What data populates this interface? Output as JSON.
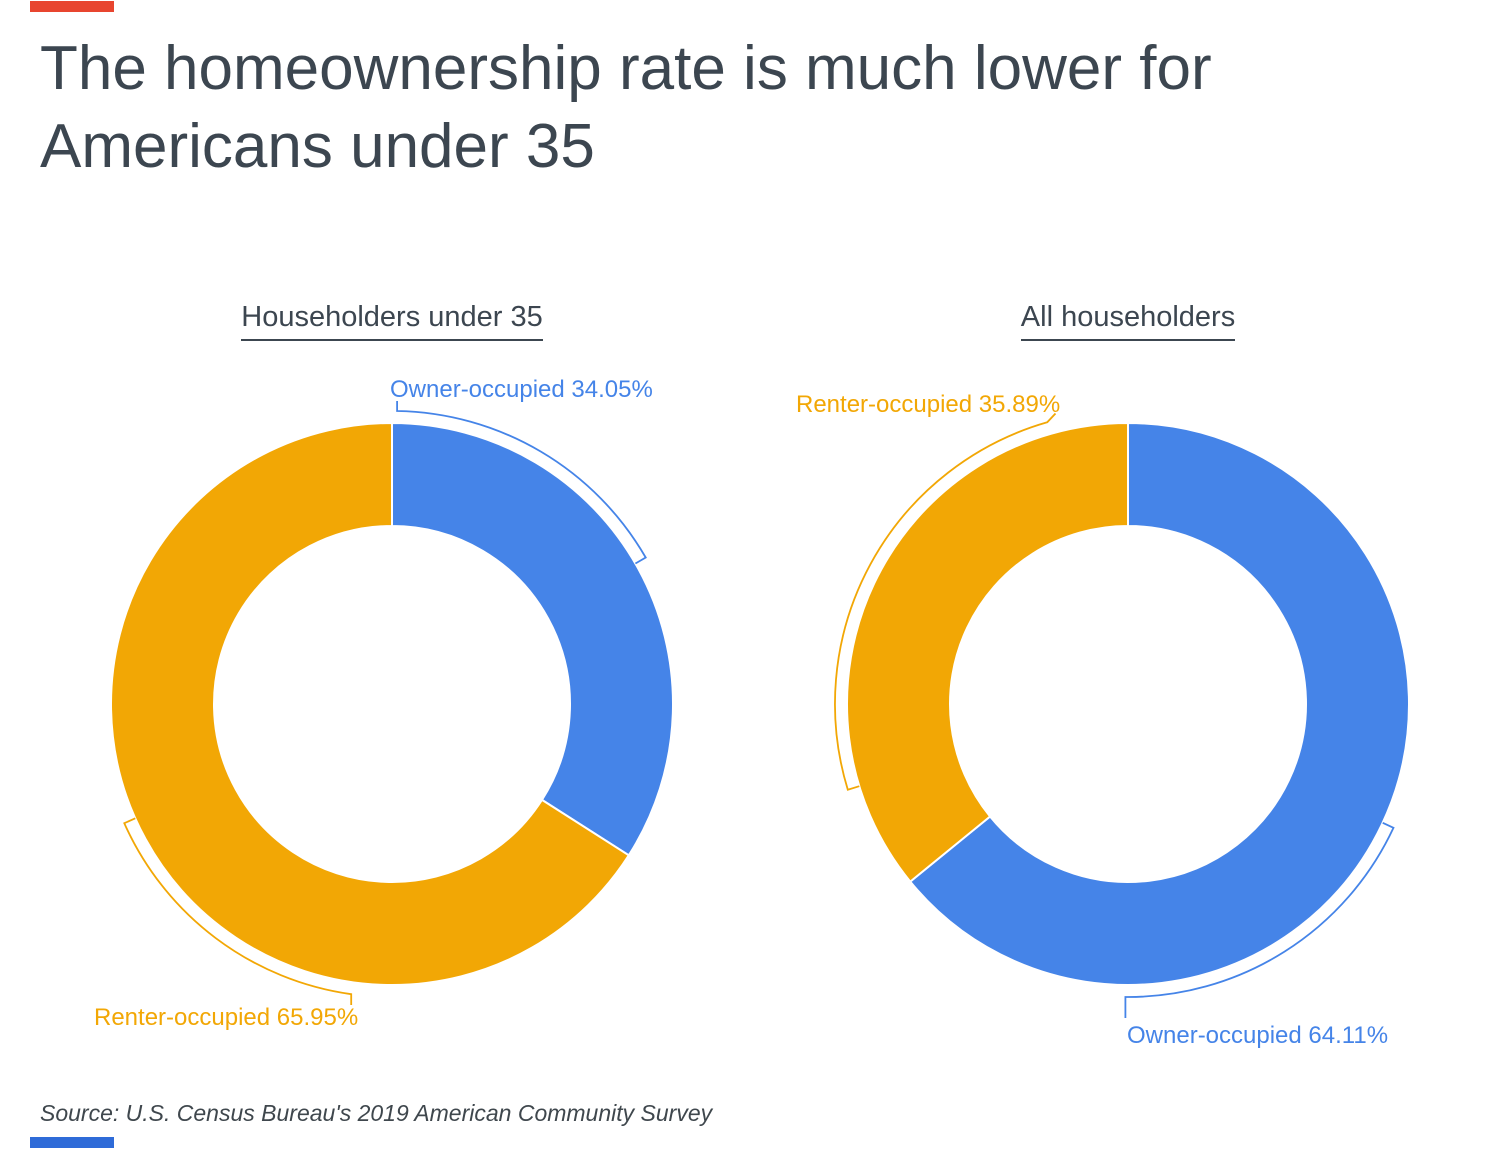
{
  "page": {
    "title": "The homeownership rate is much lower for Americans under 35",
    "source_note": "Source: U.S. Census Bureau's 2019 American Community Survey"
  },
  "accent_bars": {
    "top_color": "#E8452F",
    "bottom_color": "#2E6BD8"
  },
  "palette": {
    "owner_blue": "#4584E8",
    "renter_orange": "#F2A705",
    "heading_text": "#3C4650",
    "source_text": "#3F474D"
  },
  "chart_data": [
    {
      "type": "pie",
      "style": "donut",
      "title": "Householders under 35",
      "slices": [
        {
          "label": "Owner-occupied",
          "value": 34.05,
          "color": "#4584E8"
        },
        {
          "label": "Renter-occupied",
          "value": 65.95,
          "color": "#F2A705"
        }
      ],
      "callout_labels": [
        {
          "text": "Owner-occupied 34.05%"
        },
        {
          "text": "Renter-occupied 65.95%"
        }
      ]
    },
    {
      "type": "pie",
      "style": "donut",
      "title": "All householders",
      "slices": [
        {
          "label": "Owner-occupied",
          "value": 64.11,
          "color": "#4584E8"
        },
        {
          "label": "Renter-occupied",
          "value": 35.89,
          "color": "#F2A705"
        }
      ],
      "callout_labels": [
        {
          "text": "Owner-occupied 64.11%"
        },
        {
          "text": "Renter-occupied 35.89%"
        }
      ]
    }
  ]
}
